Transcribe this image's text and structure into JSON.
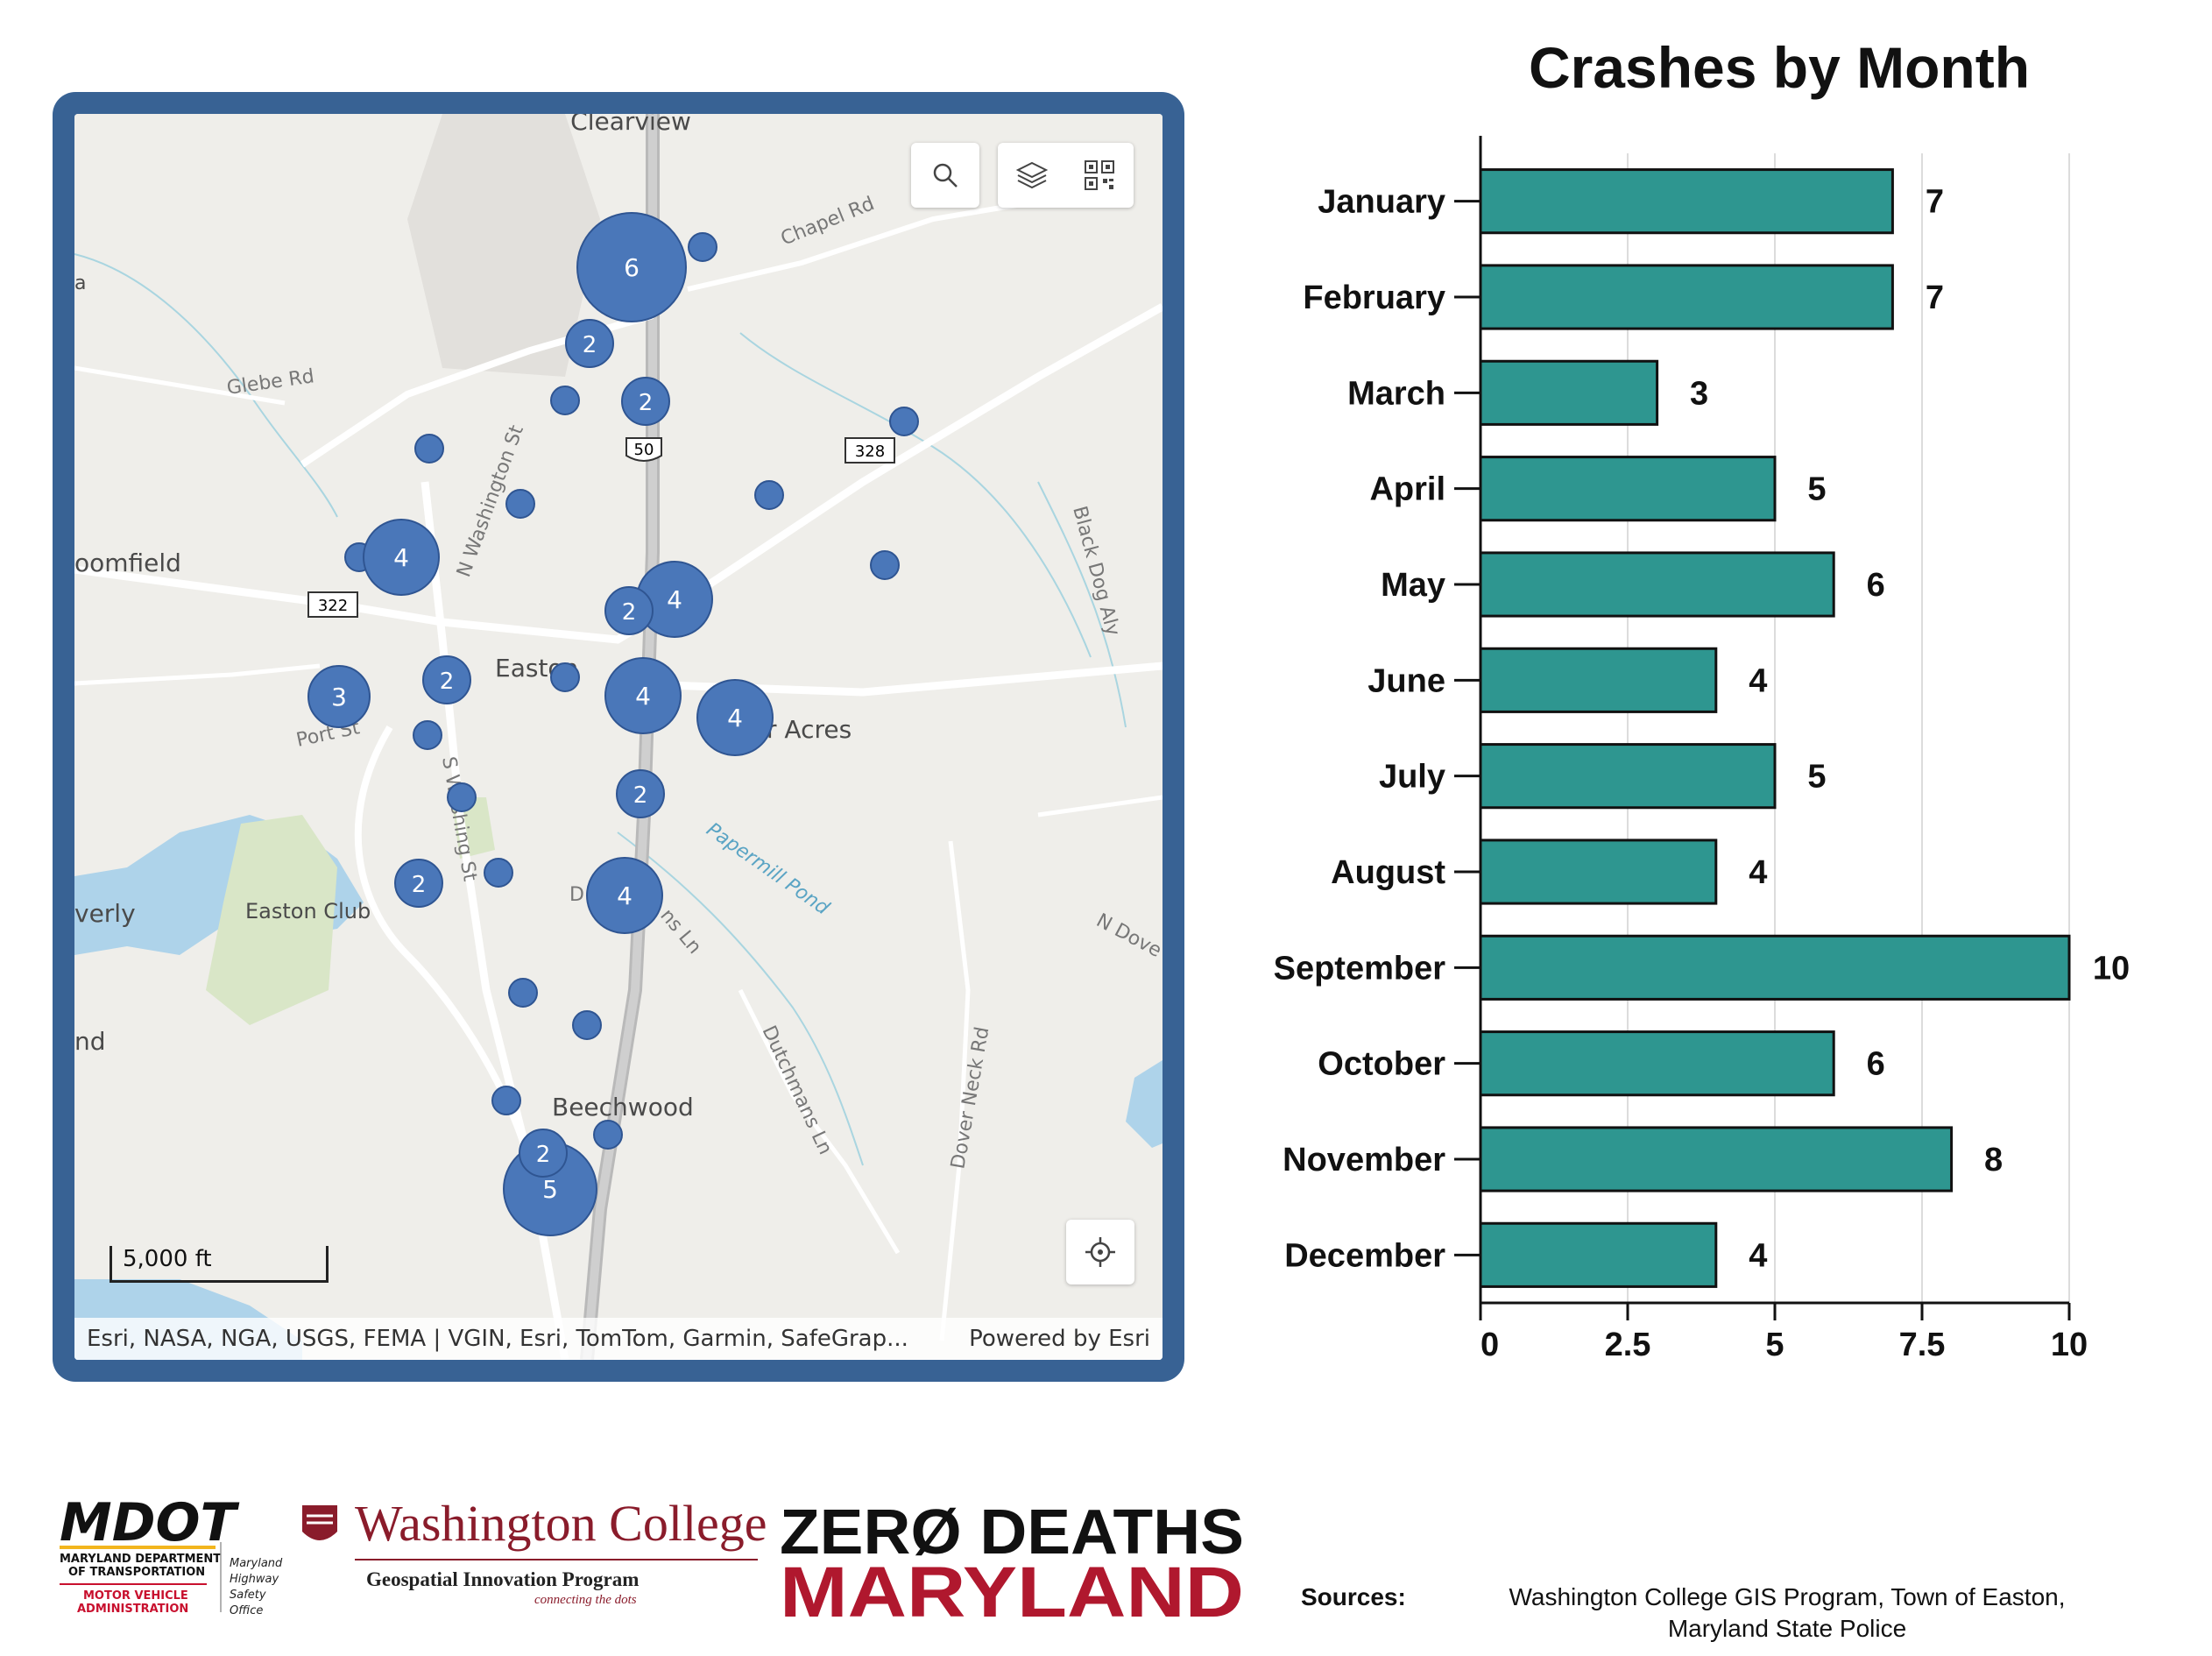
{
  "map": {
    "place_labels": {
      "clearview": "Clearview",
      "chapel_rd": "Chapel Rd",
      "glebe_rd": "Glebe Rd",
      "bloomfield": "oomfield",
      "easton": "Easton",
      "acres": "r Acres",
      "port_st": "Port St",
      "papermill_pond": "Papermill Pond",
      "easton_club": "Easton Club",
      "waverly": "verly",
      "land": "nd",
      "beechwood": "Beechwood",
      "dutchmans_ln": "Dutchmans Ln",
      "dover_neck_rd": "Dover Neck Rd",
      "n_dover": "N Dove",
      "black_dog_aly": "Black Dog Aly",
      "n_washington_st": "N Washington St",
      "s_washington_st": "S Washing St",
      "d_ns_ln": "D",
      "ns_ln": "ns Ln",
      "a": "a"
    },
    "shields": {
      "us50": "50",
      "r328": "328",
      "r322": "322"
    },
    "clusters": [
      "6",
      "2",
      "2",
      "4",
      "4",
      "2",
      "3",
      "2",
      "4",
      "4",
      "2",
      "2",
      "4",
      "2",
      "5"
    ],
    "scale_label": "5,000 ft",
    "attribution": "Esri, NASA, NGA, USGS, FEMA | VGIN, Esri, TomTom, Garmin, SafeGrap...",
    "powered_by": "Powered by Esri",
    "icons": [
      "search-icon",
      "layers-icon",
      "qr-code-icon",
      "locate-icon"
    ]
  },
  "chart_data": {
    "type": "bar",
    "orientation": "horizontal",
    "title": "Crashes by Month",
    "categories": [
      "January",
      "February",
      "March",
      "April",
      "May",
      "June",
      "July",
      "August",
      "September",
      "October",
      "November",
      "December"
    ],
    "values": [
      7,
      7,
      3,
      5,
      6,
      4,
      5,
      4,
      10,
      6,
      8,
      4
    ],
    "value_labels": [
      "7",
      "7",
      "3",
      "5",
      "6",
      "4",
      "5",
      "4",
      "10",
      "6",
      "8",
      "4"
    ],
    "xlim": [
      0,
      10
    ],
    "xticks": [
      0,
      2.5,
      5,
      7.5,
      10
    ],
    "xtick_labels": [
      "0",
      "2.5",
      "5",
      "7.5",
      "10"
    ],
    "bar_color": "#2e9690",
    "grid": true
  },
  "footer": {
    "mdot_logo": "MDOT",
    "mdot_line1": "MARYLAND DEPARTMENT",
    "mdot_line2": "OF TRANSPORTATION",
    "mva_line1": "MOTOR VEHICLE",
    "mva_line2": "ADMINISTRATION",
    "hso_line1": "Maryland",
    "hso_line2": "Highway",
    "hso_line3": "Safety",
    "hso_line4": "Office",
    "wc_name": "Washington College",
    "wc_program": "Geospatial Innovation Program",
    "wc_tagline": "connecting the dots",
    "zd_line1": "ZERØ DEATHS",
    "zd_line2": "MARYLAND",
    "sources_label": "Sources:",
    "sources_line1": "Washington College GIS Program, Town of Easton,",
    "sources_line2": "Maryland State Police"
  }
}
